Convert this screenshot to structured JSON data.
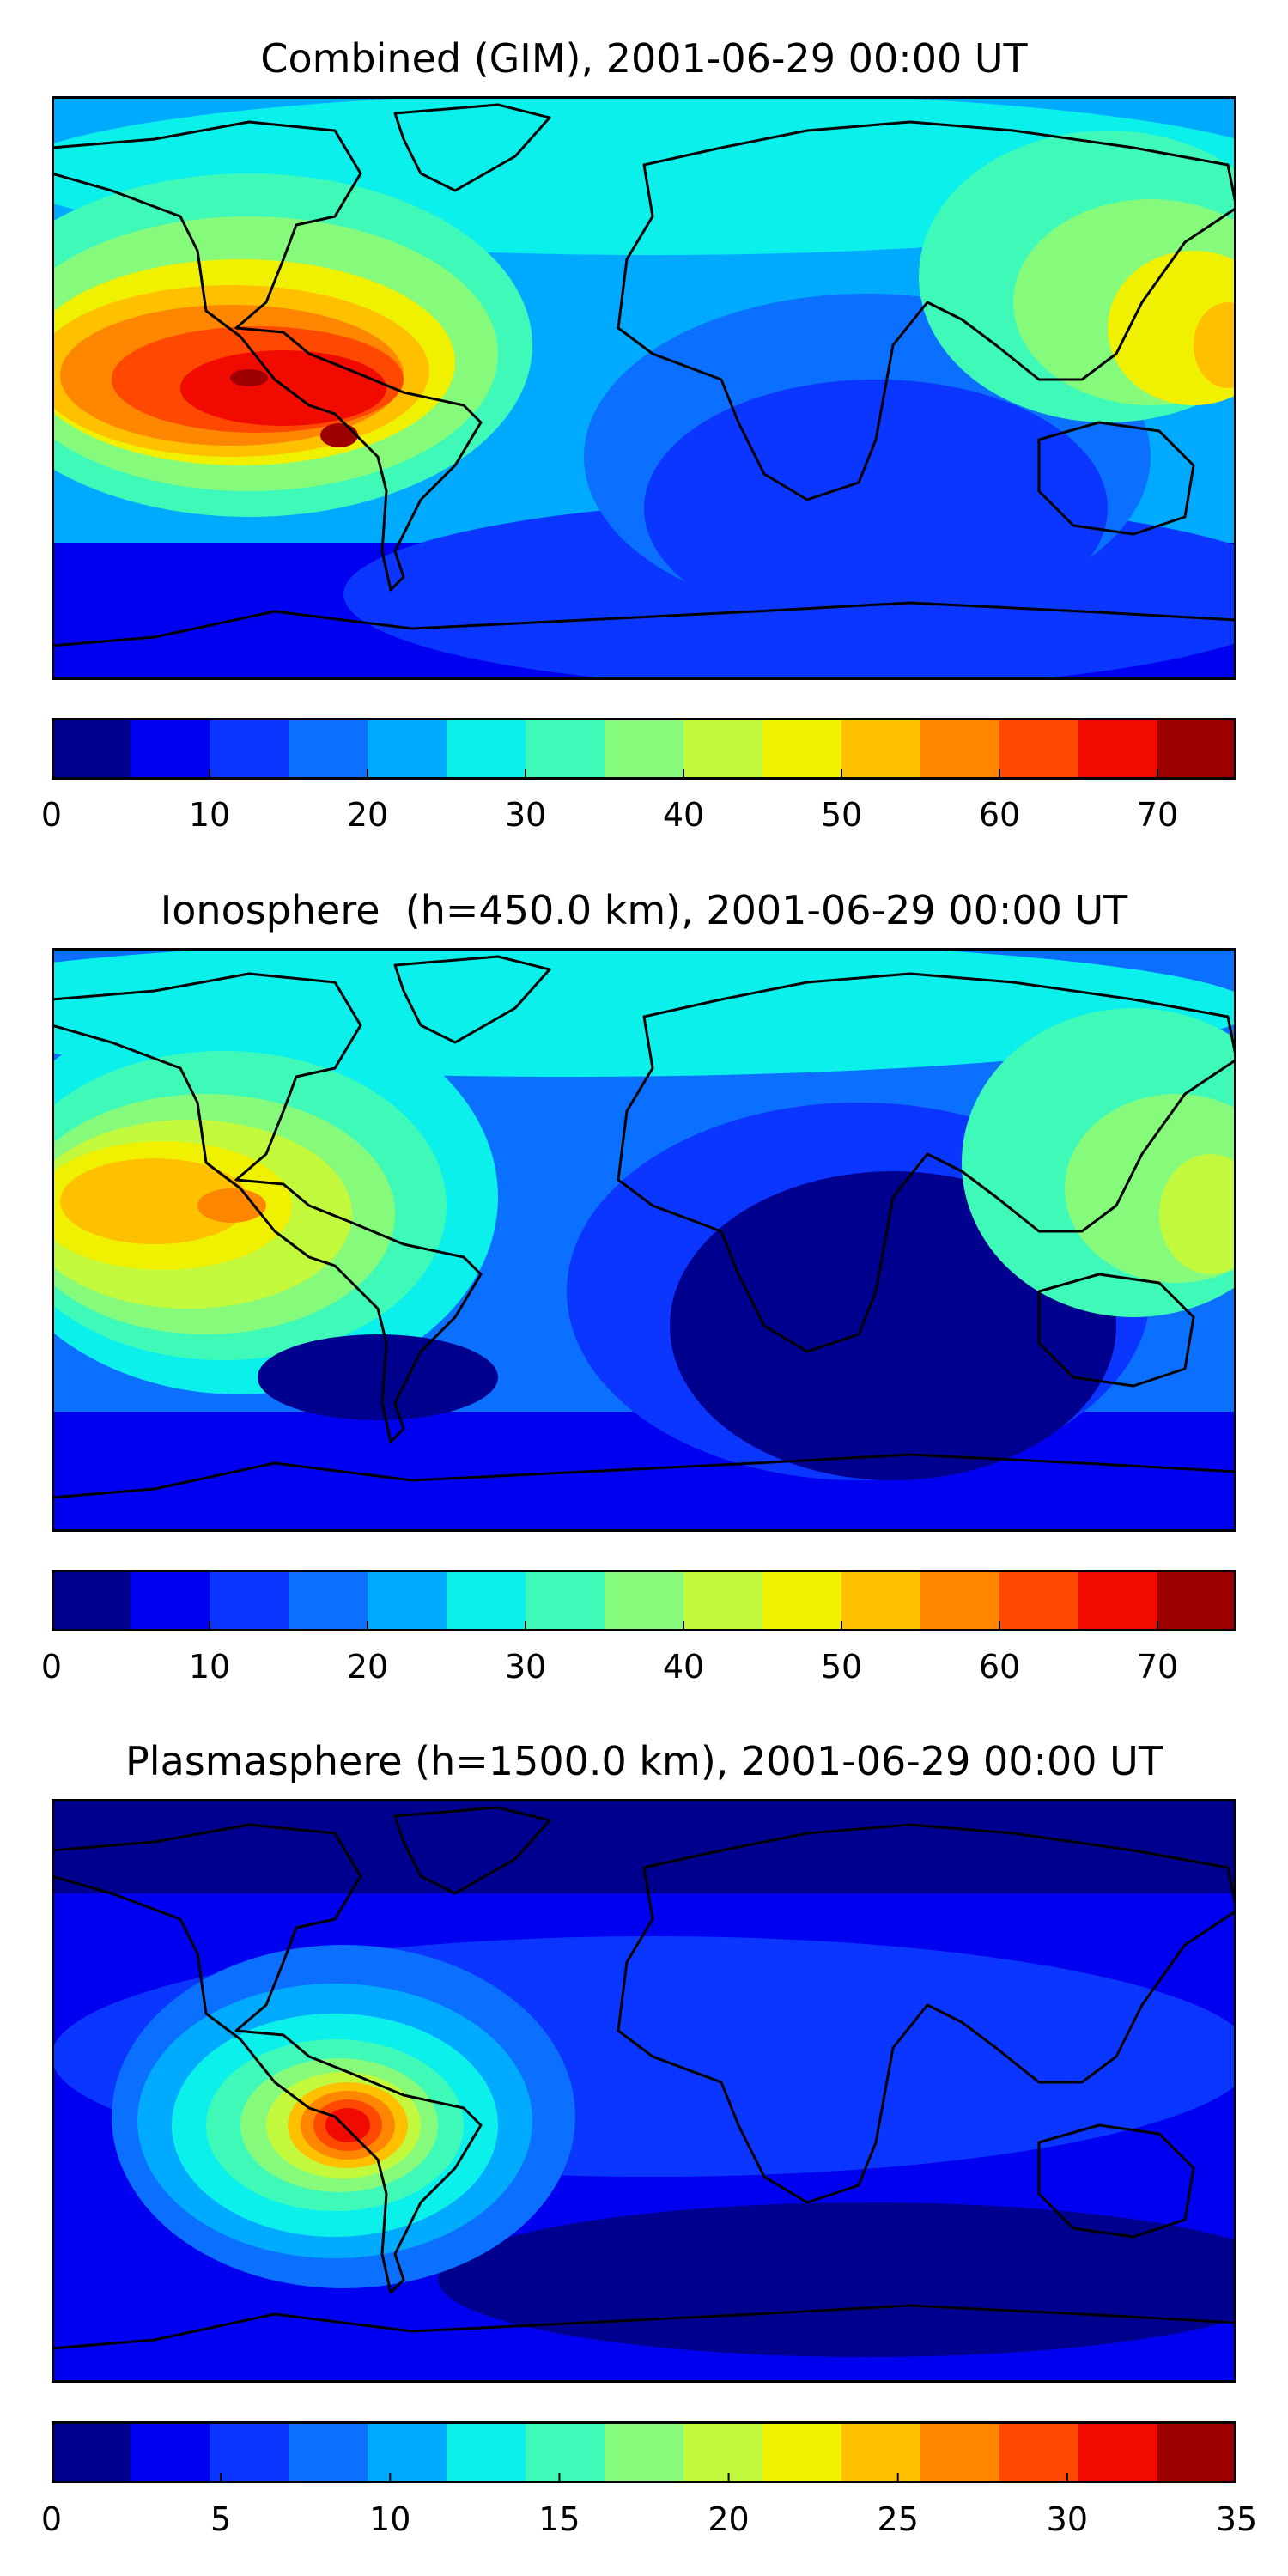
{
  "panels": [
    {
      "title": "Combined (GIM), 2001-06-29 00:00 UT",
      "colorbar": {
        "min": 0,
        "max": 75,
        "step": 5,
        "ticks": [
          0,
          10,
          20,
          30,
          40,
          50,
          60,
          70
        ]
      }
    },
    {
      "title": "Ionosphere  (h=450.0 km), 2001-06-29 00:00 UT",
      "colorbar": {
        "min": 0,
        "max": 75,
        "step": 5,
        "ticks": [
          0,
          10,
          20,
          30,
          40,
          50,
          60,
          70
        ]
      }
    },
    {
      "title": "Plasmasphere (h=1500.0 km), 2001-06-29 00:00 UT",
      "colorbar": {
        "min": 0,
        "max": 35,
        "step": 2.5,
        "ticks": [
          0,
          5,
          10,
          15,
          20,
          25,
          30,
          35
        ]
      }
    }
  ],
  "colormap": [
    "#00008f",
    "#0000f0",
    "#0a36ff",
    "#0b6fff",
    "#00aaff",
    "#0cf0ec",
    "#3ff9b8",
    "#86fb7b",
    "#c2f93d",
    "#f0f100",
    "#ffc000",
    "#ff8600",
    "#ff4800",
    "#f00a00",
    "#9e0000"
  ]
}
